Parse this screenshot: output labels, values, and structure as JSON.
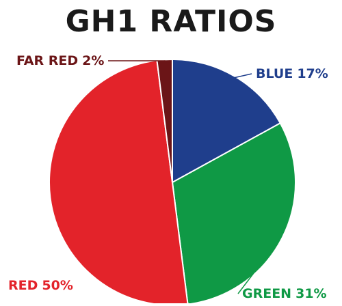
{
  "chart_data": {
    "type": "pie",
    "title": "GH1 RATIOS",
    "categories": [
      "BLUE",
      "GREEN",
      "RED",
      "FAR RED"
    ],
    "values": [
      17,
      31,
      50,
      2
    ],
    "value_labels": [
      "17%",
      "31%",
      "50%",
      "2%"
    ],
    "colors": [
      "#1f3e8c",
      "#0f9945",
      "#e3232a",
      "#6b1517"
    ]
  }
}
